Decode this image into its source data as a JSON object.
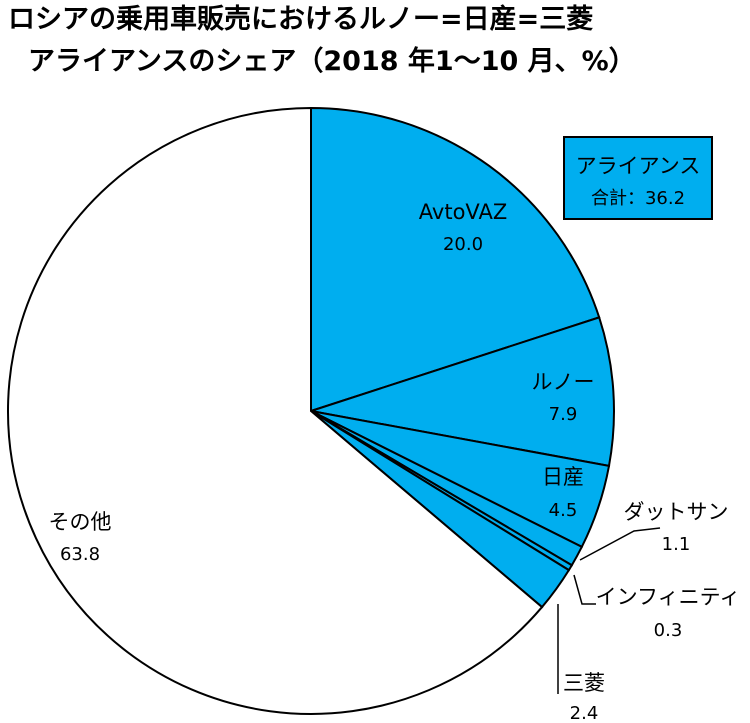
{
  "chart_data": {
    "type": "pie",
    "title_line1": "ロシアの乗用車販売におけるルノー=日産=三菱",
    "title_line2": "アライアンスのシェア（2018 年1～10 月、%）",
    "colors": {
      "alliance": "#00aeef",
      "other": "#ffffff",
      "stroke": "#000000"
    },
    "slices": [
      {
        "label": "AvtoVAZ",
        "value": 20.0,
        "value_label": "20.0",
        "group": "alliance"
      },
      {
        "label": "ルノー",
        "value": 7.9,
        "value_label": "7.9",
        "group": "alliance"
      },
      {
        "label": "日産",
        "value": 4.5,
        "value_label": "4.5",
        "group": "alliance"
      },
      {
        "label": "ダットサン",
        "value": 1.1,
        "value_label": "1.1",
        "group": "alliance"
      },
      {
        "label": "インフィニティ",
        "value": 0.3,
        "value_label": "0.3",
        "group": "alliance"
      },
      {
        "label": "三菱",
        "value": 2.4,
        "value_label": "2.4",
        "group": "alliance"
      },
      {
        "label": "その他",
        "value": 63.8,
        "value_label": "63.8",
        "group": "other"
      }
    ],
    "annotation": {
      "line1": "アライアンス",
      "line2": "合計：36.2"
    }
  }
}
